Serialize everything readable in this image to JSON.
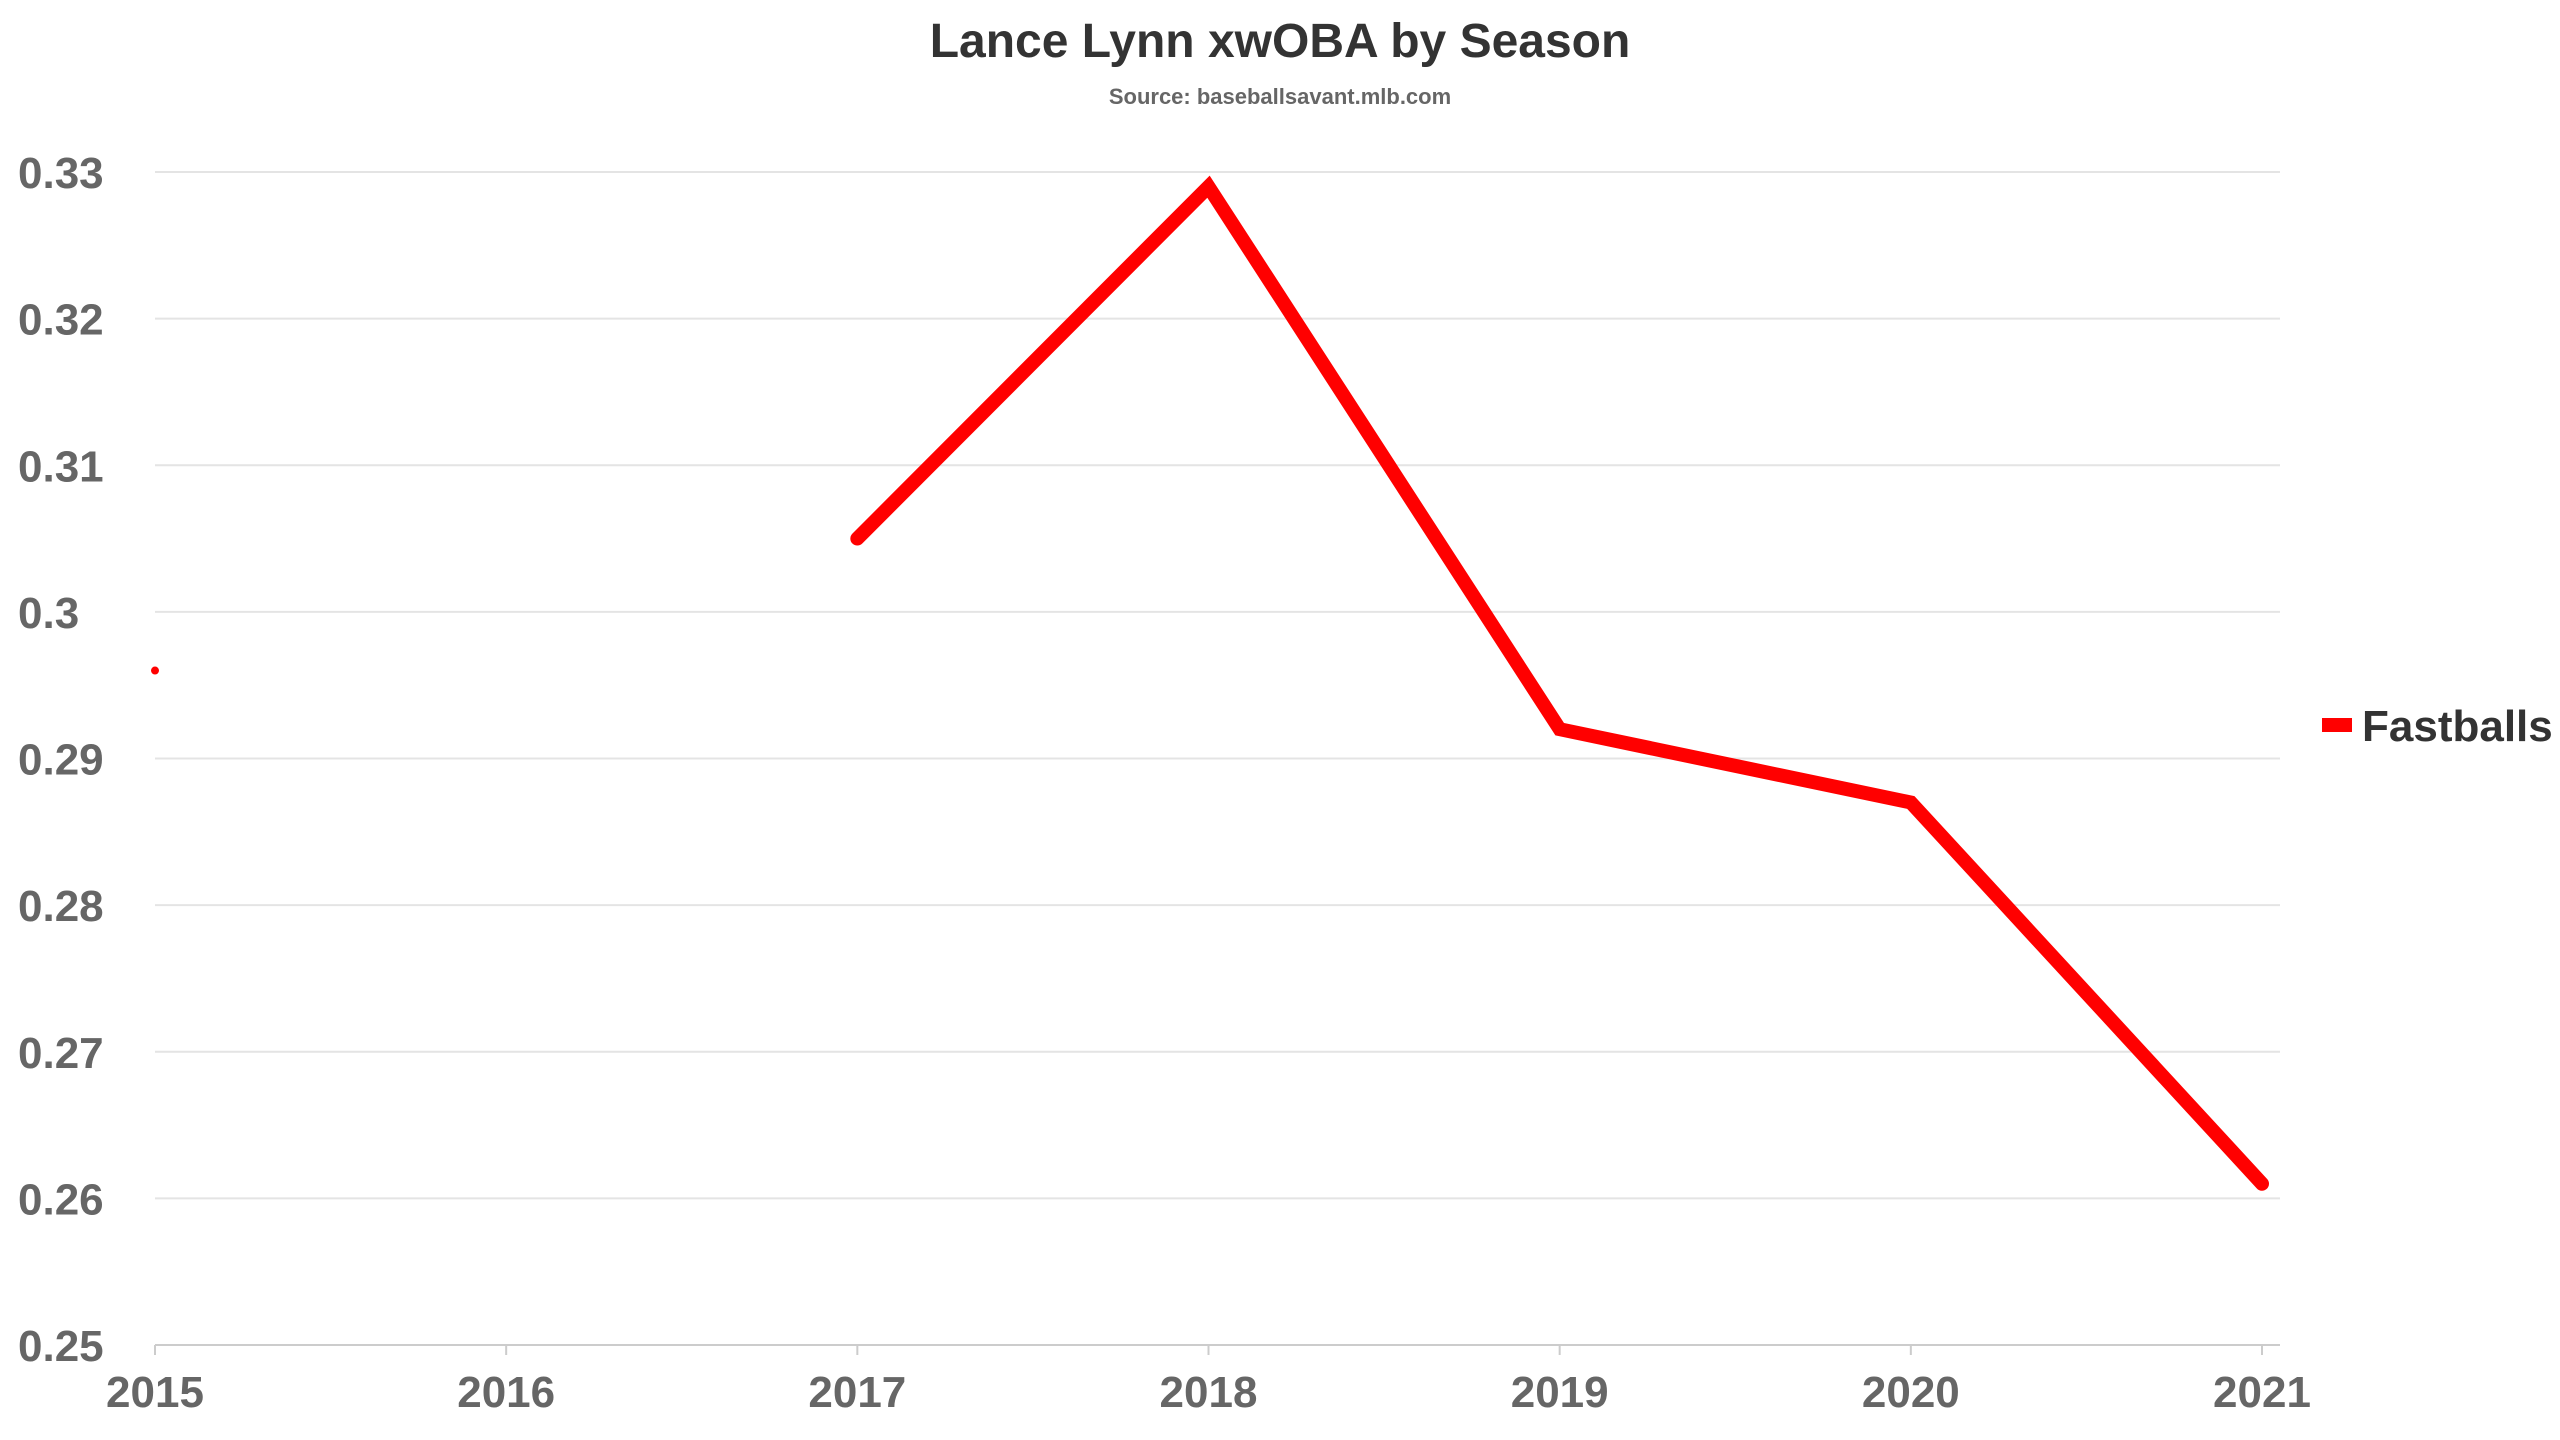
{
  "chart_data": {
    "type": "line",
    "title": "Lance Lynn xwOBA by Season",
    "subtitle": "Source: baseballsavant.mlb.com",
    "xlabel": "",
    "ylabel": "",
    "x": [
      "2015",
      "2016",
      "2017",
      "2018",
      "2019",
      "2020",
      "2021"
    ],
    "series": [
      {
        "name": "Fastballs",
        "color": "#ff0000",
        "values": [
          0.296,
          null,
          0.305,
          0.329,
          0.292,
          0.287,
          0.261
        ]
      }
    ],
    "ylim": [
      0.25,
      0.33
    ],
    "yticks": [
      "0.33",
      "0.32",
      "0.31",
      "0.3",
      "0.29",
      "0.28",
      "0.27",
      "0.26",
      "0.25"
    ],
    "grid": true,
    "legend_position": "right"
  }
}
